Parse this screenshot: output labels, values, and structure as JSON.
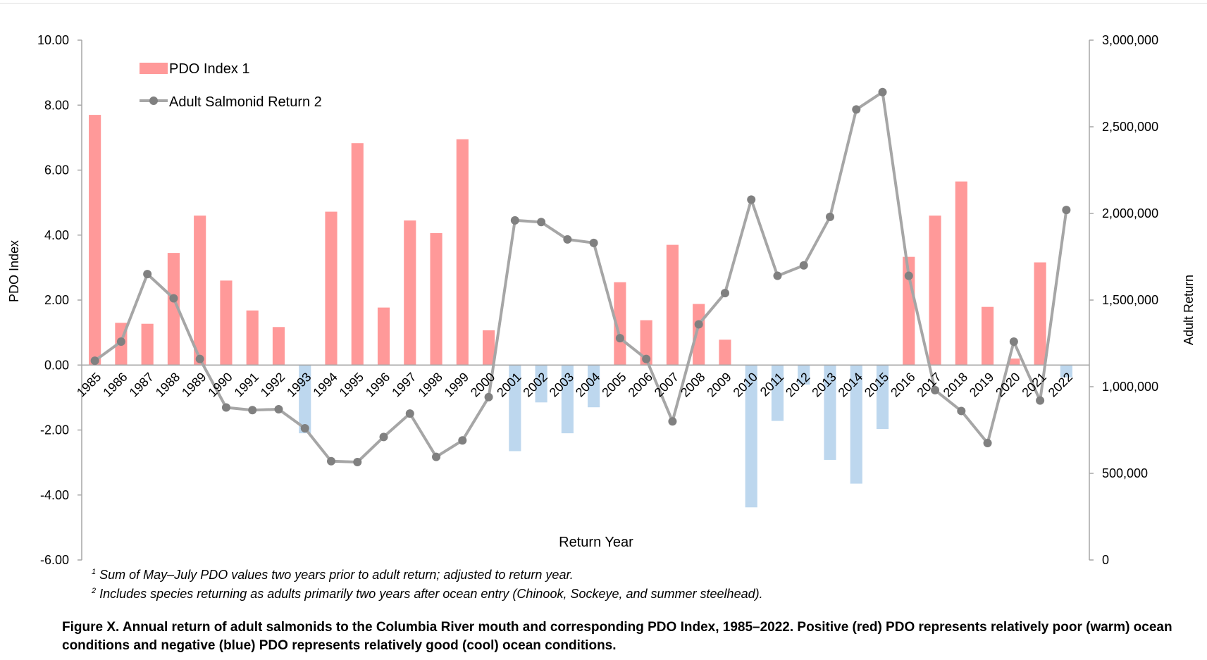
{
  "chart_data": {
    "type": "bar+line",
    "categories": [
      "1985",
      "1986",
      "1987",
      "1988",
      "1989",
      "1990",
      "1991",
      "1992",
      "1993",
      "1994",
      "1995",
      "1996",
      "1997",
      "1998",
      "1999",
      "2000",
      "2001",
      "2002",
      "2003",
      "2004",
      "2005",
      "2006",
      "2007",
      "2008",
      "2009",
      "2010",
      "2011",
      "2012",
      "2013",
      "2014",
      "2015",
      "2016",
      "2017",
      "2018",
      "2019",
      "2020",
      "2021",
      "2022"
    ],
    "series": [
      {
        "name": "PDO Index 1",
        "axis": "left",
        "kind": "bar",
        "values": [
          7.7,
          1.3,
          1.27,
          3.45,
          4.6,
          2.6,
          1.68,
          1.17,
          -2.1,
          4.72,
          6.83,
          1.77,
          4.45,
          4.06,
          6.95,
          1.07,
          -2.65,
          -1.15,
          -2.1,
          -1.3,
          2.55,
          1.38,
          3.7,
          1.88,
          0.78,
          -4.38,
          -1.72,
          -0.6,
          -2.92,
          -3.65,
          -1.97,
          3.33,
          4.6,
          5.65,
          1.79,
          0.2,
          3.16,
          -0.38
        ]
      },
      {
        "name": "Adult Salmonid Return 2",
        "axis": "right",
        "kind": "line",
        "values": [
          1150000,
          1260000,
          1650000,
          1510000,
          1160000,
          880000,
          865000,
          870000,
          760000,
          570000,
          565000,
          710000,
          845000,
          595000,
          690000,
          940000,
          1960000,
          1950000,
          1850000,
          1830000,
          1280000,
          1160000,
          800000,
          1360000,
          1540000,
          2080000,
          1640000,
          1700000,
          1980000,
          2600000,
          2700000,
          1640000,
          980000,
          860000,
          675000,
          1260000,
          920000,
          2020000
        ]
      }
    ],
    "colors": {
      "positive_bar": "#ff9999",
      "negative_bar": "#bdd7ee",
      "line": "#a6a6a6",
      "marker": "#808080"
    },
    "left_axis": {
      "label": "PDO Index",
      "ylim": [
        -6,
        10
      ],
      "ticks": [
        "10.00",
        "8.00",
        "6.00",
        "4.00",
        "2.00",
        "0.00",
        "-2.00",
        "-4.00",
        "-6.00"
      ]
    },
    "right_axis": {
      "label": "Adult Return",
      "ylim": [
        0,
        3000000
      ],
      "ticks": [
        "3,000,000",
        "2,500,000",
        "2,000,000",
        "1,500,000",
        "1,000,000",
        "500,000",
        "0"
      ]
    },
    "xlabel": "Return Year",
    "legend": {
      "position": "top-left",
      "items": [
        "PDO Index 1",
        "Adult Salmonid Return 2"
      ]
    },
    "grid": false
  },
  "footnotes": {
    "note1": "Sum of May–July PDO values two years prior to adult return; adjusted to return year.",
    "note2": "Includes species returning as adults primarily two years after ocean entry (Chinook, Sockeye, and summer steelhead).",
    "marker1": "1",
    "marker2": "2"
  },
  "caption": "Figure X.  Annual return of adult salmonids to the Columbia River mouth and corresponding PDO Index, 1985–2022.  Positive (red) PDO represents relatively poor (warm) ocean conditions and negative (blue) PDO represents relatively good (cool) ocean conditions."
}
